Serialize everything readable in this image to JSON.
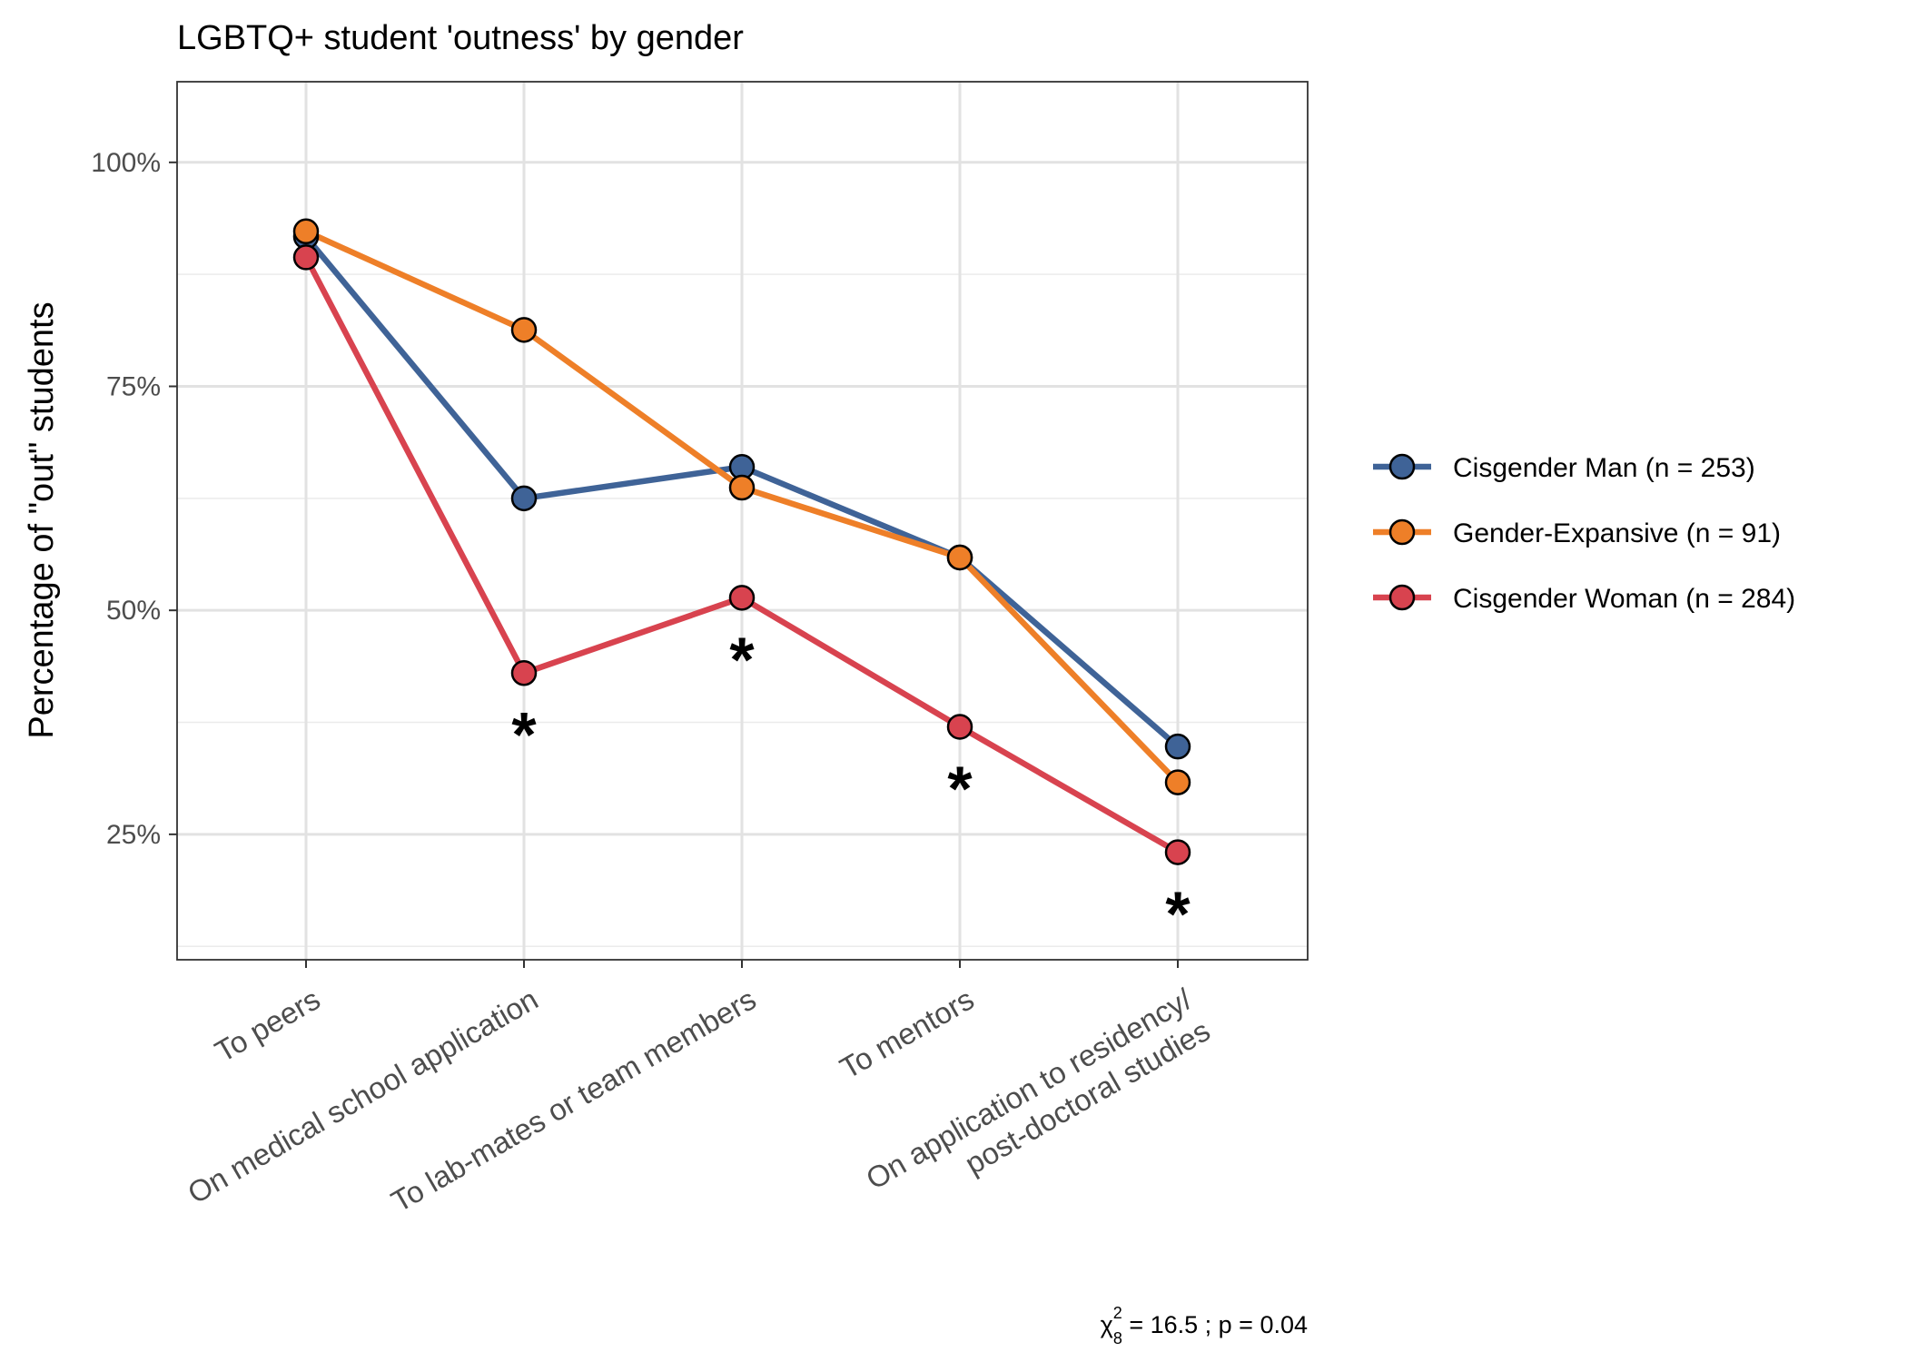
{
  "chart_data": {
    "type": "line",
    "title": "LGBTQ+ student 'outness' by gender",
    "xlabel": "",
    "ylabel": "Percentage of \"out\" students",
    "categories": [
      "To peers",
      "On medical school application",
      "To lab-mates or team members",
      "To mentors",
      "On application to residency/\npost-doctoral studies"
    ],
    "y_ticks": [
      25,
      50,
      75,
      100
    ],
    "y_tick_labels": [
      "25%",
      "50%",
      "75%",
      "100%"
    ],
    "ylim": [
      11,
      109
    ],
    "grid": true,
    "legend_position": "right",
    "series": [
      {
        "name": "Cisgender Man (n = 253)",
        "color": "#3F6397",
        "values": [
          91.7,
          62.5,
          66.0,
          55.9,
          34.8
        ]
      },
      {
        "name": "Gender-Expansive (n = 91)",
        "color": "#EE7F28",
        "values": [
          92.3,
          81.3,
          63.7,
          55.9,
          30.8
        ]
      },
      {
        "name": "Cisgender Woman (n = 284)",
        "color": "#D8434F",
        "values": [
          89.4,
          43.0,
          51.4,
          37.0,
          23.0
        ]
      }
    ],
    "significance_markers": [
      {
        "category_index": 1,
        "label": "*"
      },
      {
        "category_index": 2,
        "label": "*"
      },
      {
        "category_index": 3,
        "label": "*"
      },
      {
        "category_index": 4,
        "label": "*"
      }
    ],
    "annotation": {
      "chi": "χ",
      "sup": "2",
      "sub": "8",
      "rest": " = 16.5 ;  p = 0.04"
    }
  }
}
